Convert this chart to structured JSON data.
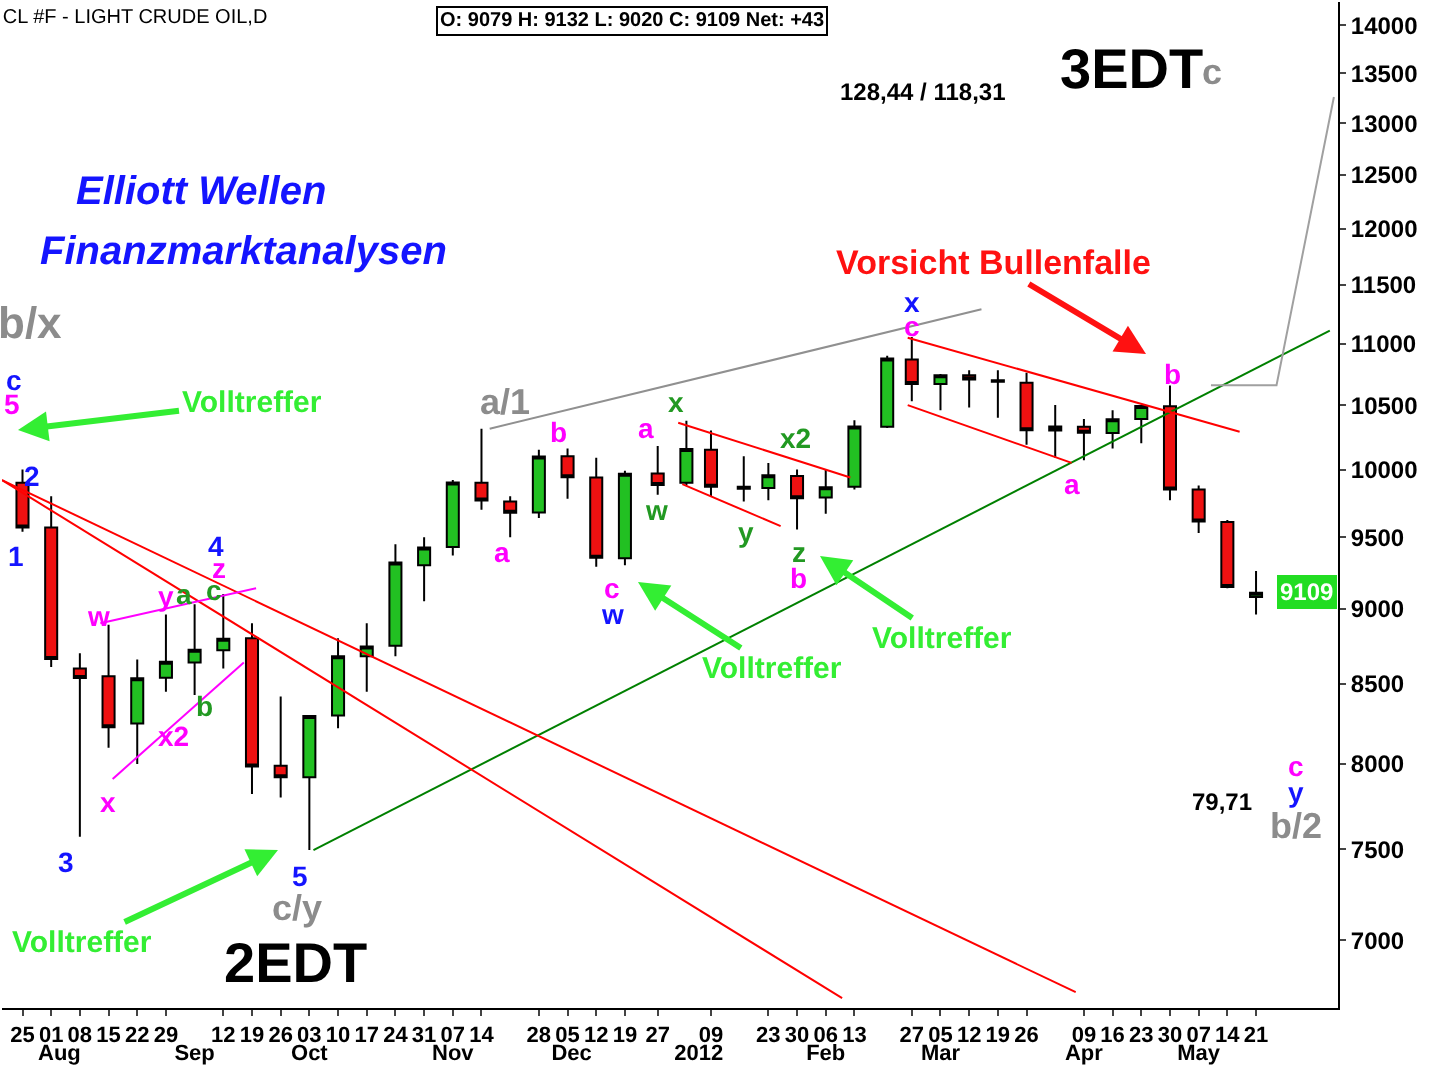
{
  "chart_data": {
    "type": "candlestick",
    "title": "CL #F - LIGHT CRUDE OIL,D",
    "x": [
      "2011-07-25",
      "2011-08-01",
      "2011-08-08",
      "2011-08-15",
      "2011-08-22",
      "2011-08-29",
      "2011-09-05",
      "2011-09-12",
      "2011-09-19",
      "2011-09-26",
      "2011-10-03",
      "2011-10-10",
      "2011-10-17",
      "2011-10-24",
      "2011-10-31",
      "2011-11-07",
      "2011-11-14",
      "2011-11-21",
      "2011-11-28",
      "2011-12-05",
      "2011-12-12",
      "2011-12-19",
      "2011-12-27",
      "2012-01-03",
      "2012-01-09",
      "2012-01-17",
      "2012-01-23",
      "2012-01-30",
      "2012-02-06",
      "2012-02-13",
      "2012-02-21",
      "2012-02-27",
      "2012-03-05",
      "2012-03-12",
      "2012-03-19",
      "2012-03-26",
      "2012-04-02",
      "2012-04-09",
      "2012-04-16",
      "2012-04-23",
      "2012-04-30",
      "2012-05-07",
      "2012-05-14",
      "2012-05-21"
    ],
    "ohlc": [
      [
        9900,
        10000,
        9540,
        9570
      ],
      [
        9570,
        9800,
        8610,
        8663
      ],
      [
        8600,
        8700,
        7571,
        8538
      ],
      [
        8550,
        8890,
        8100,
        8226
      ],
      [
        8250,
        8660,
        8000,
        8537
      ],
      [
        8540,
        8960,
        8450,
        8645
      ],
      [
        8640,
        9030,
        8430,
        8724
      ],
      [
        8720,
        9100,
        8600,
        8796
      ],
      [
        8800,
        8900,
        7820,
        7985
      ],
      [
        7990,
        8420,
        7800,
        7920
      ],
      [
        7920,
        8300,
        7495,
        8297
      ],
      [
        8300,
        8800,
        8220,
        8680
      ],
      [
        8680,
        8900,
        8450,
        8745
      ],
      [
        8750,
        9450,
        8680,
        9320
      ],
      [
        9300,
        9500,
        9050,
        9426
      ],
      [
        9430,
        9920,
        9370,
        9902
      ],
      [
        9900,
        10314,
        9700,
        9767
      ],
      [
        9760,
        9800,
        9500,
        9677
      ],
      [
        9680,
        10150,
        9640,
        10099
      ],
      [
        10100,
        10160,
        9780,
        9941
      ],
      [
        9940,
        10090,
        9290,
        9353
      ],
      [
        9350,
        9990,
        9300,
        9968
      ],
      [
        9970,
        10180,
        9810,
        9883
      ],
      [
        9900,
        10377,
        9880,
        10156
      ],
      [
        10150,
        10300,
        9800,
        9870
      ],
      [
        9870,
        10100,
        9760,
        9856
      ],
      [
        9860,
        10050,
        9770,
        9956
      ],
      [
        9950,
        10000,
        9555,
        9784
      ],
      [
        9790,
        10000,
        9670,
        9867
      ],
      [
        9870,
        10380,
        9850,
        10331
      ],
      [
        10330,
        10900,
        10320,
        10877
      ],
      [
        10870,
        11055,
        10530,
        10670
      ],
      [
        10670,
        10750,
        10460,
        10740
      ],
      [
        10740,
        10780,
        10480,
        10706
      ],
      [
        10700,
        10780,
        10400,
        10687
      ],
      [
        10680,
        10760,
        10190,
        10302
      ],
      [
        10300,
        10500,
        10090,
        10331
      ],
      [
        10330,
        10390,
        10070,
        10283
      ],
      [
        10280,
        10460,
        10160,
        10388
      ],
      [
        10390,
        10500,
        10200,
        10493
      ],
      [
        10490,
        10658,
        9770,
        9849
      ],
      [
        9850,
        9880,
        9530,
        9613
      ],
      [
        9610,
        9625,
        9140,
        9148
      ],
      [
        9080,
        9260,
        8960,
        9109
      ]
    ],
    "series": [
      {
        "type": "line",
        "color": "#008000",
        "x": [
          "2011-10-04",
          "2012-06-08"
        ],
        "values": [
          7495,
          11110
        ]
      },
      {
        "type": "line",
        "color": "#909090",
        "x": [
          "2011-11-16",
          "2012-03-15"
        ],
        "values": [
          10314,
          11290
        ]
      },
      {
        "type": "line",
        "color": "#ff0000",
        "x": [
          "2011-07-20",
          "2012-04-07"
        ],
        "values": [
          9920,
          6730
        ]
      },
      {
        "type": "line",
        "color": "#ff0000",
        "x": [
          "2011-07-20",
          "2012-02-10"
        ],
        "values": [
          9920,
          6700
        ]
      },
      {
        "type": "line",
        "color": "#ff0000",
        "x": [
          "2012-02-26",
          "2012-05-17"
        ],
        "values": [
          11050,
          10290
        ]
      },
      {
        "type": "line",
        "color": "#ff0000",
        "x": [
          "2012-02-26",
          "2012-04-06"
        ],
        "values": [
          10500,
          10050
        ]
      },
      {
        "type": "line",
        "color": "#ff0000",
        "x": [
          "2012-01-01",
          "2012-02-12"
        ],
        "values": [
          10360,
          9940
        ]
      },
      {
        "type": "line",
        "color": "#ff0000",
        "x": [
          "2012-01-02",
          "2012-01-26"
        ],
        "values": [
          9890,
          9580
        ]
      },
      {
        "type": "line",
        "color": "#ff00ff",
        "x": [
          "2011-08-16",
          "2011-09-17"
        ],
        "values": [
          7910,
          8640
        ]
      },
      {
        "type": "line",
        "color": "#ff00ff",
        "x": [
          "2011-08-13",
          "2011-09-20"
        ],
        "values": [
          8900,
          9140
        ]
      },
      {
        "type": "line",
        "color": "#a0a0a0",
        "x": [
          "2012-05-10",
          "2012-05-26",
          "2012-06-09"
        ],
        "values": [
          10660,
          10660,
          13260
        ]
      }
    ],
    "xlim": [
      "2011-07-20",
      "2012-06-10"
    ],
    "xticks": [
      {
        "value": "2011-07-25",
        "label": "25"
      },
      {
        "value": "2011-08-01",
        "label": "01"
      },
      {
        "value": "2011-08-08",
        "label": "08"
      },
      {
        "value": "2011-08-15",
        "label": "15"
      },
      {
        "value": "2011-08-22",
        "label": "22"
      },
      {
        "value": "2011-08-29",
        "label": "29"
      },
      {
        "value": "2011-09-12",
        "label": "12"
      },
      {
        "value": "2011-09-19",
        "label": "19"
      },
      {
        "value": "2011-09-26",
        "label": "26"
      },
      {
        "value": "2011-10-03",
        "label": "03"
      },
      {
        "value": "2011-10-10",
        "label": "10"
      },
      {
        "value": "2011-10-17",
        "label": "17"
      },
      {
        "value": "2011-10-24",
        "label": "24"
      },
      {
        "value": "2011-10-31",
        "label": "31"
      },
      {
        "value": "2011-11-07",
        "label": "07"
      },
      {
        "value": "2011-11-14",
        "label": "14"
      },
      {
        "value": "2011-11-28",
        "label": "28"
      },
      {
        "value": "2011-12-05",
        "label": "05"
      },
      {
        "value": "2011-12-12",
        "label": "12"
      },
      {
        "value": "2011-12-19",
        "label": "19"
      },
      {
        "value": "2011-12-27",
        "label": "27"
      },
      {
        "value": "2012-01-09",
        "label": "09"
      },
      {
        "value": "2012-01-23",
        "label": "23"
      },
      {
        "value": "2012-01-30",
        "label": "30"
      },
      {
        "value": "2012-02-06",
        "label": "06"
      },
      {
        "value": "2012-02-13",
        "label": "13"
      },
      {
        "value": "2012-02-27",
        "label": "27"
      },
      {
        "value": "2012-03-05",
        "label": "05"
      },
      {
        "value": "2012-03-12",
        "label": "12"
      },
      {
        "value": "2012-03-19",
        "label": "19"
      },
      {
        "value": "2012-03-26",
        "label": "26"
      },
      {
        "value": "2012-04-09",
        "label": "09"
      },
      {
        "value": "2012-04-16",
        "label": "16"
      },
      {
        "value": "2012-04-23",
        "label": "23"
      },
      {
        "value": "2012-04-30",
        "label": "30"
      },
      {
        "value": "2012-05-07",
        "label": "07"
      },
      {
        "value": "2012-05-14",
        "label": "14"
      },
      {
        "value": "2012-05-21",
        "label": "21"
      }
    ],
    "x2lim": [
      "2011-07-20",
      "2012-06-10"
    ],
    "x2ticks": [
      {
        "value": "2011-08-03",
        "label": "Aug"
      },
      {
        "value": "2011-09-05",
        "label": "Sep"
      },
      {
        "value": "2011-10-03",
        "label": "Oct"
      },
      {
        "value": "2011-11-07",
        "label": "Nov"
      },
      {
        "value": "2011-12-06",
        "label": "Dec"
      },
      {
        "value": "2012-01-06",
        "label": "2012"
      },
      {
        "value": "2012-02-06",
        "label": "Feb"
      },
      {
        "value": "2012-03-05",
        "label": "Mar"
      },
      {
        "value": "2012-04-09",
        "label": "Apr"
      },
      {
        "value": "2012-05-07",
        "label": "May"
      }
    ],
    "ylim": [
      6650,
      14250
    ],
    "yticks": [
      7000,
      7500,
      8000,
      8500,
      9000,
      9500,
      10000,
      10500,
      11000,
      11500,
      12000,
      12500,
      13000,
      13500,
      14000
    ],
    "log": true,
    "annotations": [
      "b/x",
      "c",
      "5",
      "2",
      "1",
      "3",
      "4",
      "z",
      "w",
      "y",
      "a",
      "c",
      "b",
      "x2",
      "x",
      "5",
      "c/y",
      "2EDT",
      "a/1",
      "b",
      "a",
      "c",
      "w",
      "a",
      "x",
      "w",
      "y",
      "x2",
      "z",
      "b",
      "x",
      "c",
      "b",
      "a",
      "c",
      "y",
      "b/2",
      "3EDT",
      "c",
      "Volltreffer",
      "Volltreffer",
      "Volltreffer",
      "Volltreffer",
      "Vorsicht Bullenfalle",
      "Elliott Wellen",
      "Finanzmarktanalysen",
      "128,44 / 118,31",
      "79,71",
      "O: 9079 H: 9132 L: 9020 C: 9109 Net: +43",
      "9109"
    ]
  }
}
